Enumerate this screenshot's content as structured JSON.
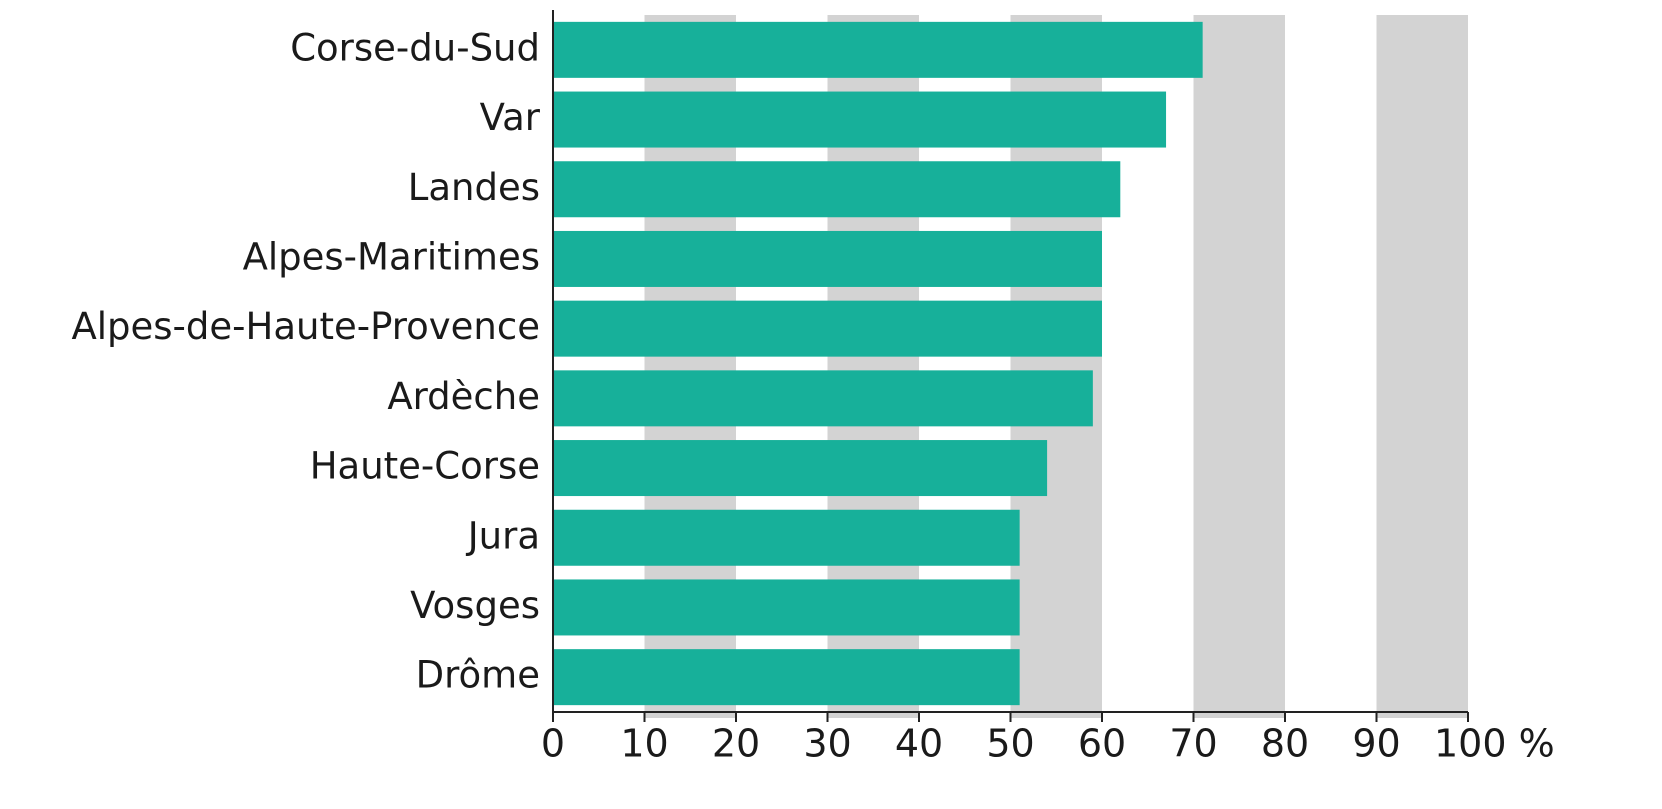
{
  "chart_data": {
    "type": "barh",
    "categories": [
      "Corse-du-Sud",
      "Var",
      "Landes",
      "Alpes-Maritimes",
      "Alpes-de-Haute-Provence",
      "Ardèche",
      "Haute-Corse",
      "Jura",
      "Vosges",
      "Drôme"
    ],
    "values": [
      71,
      67,
      62,
      60,
      60,
      59,
      54,
      51,
      51,
      51
    ],
    "color": "#17b09a",
    "band_color": "#d3d3d3",
    "xlim": [
      0,
      100
    ],
    "xticks": [
      0,
      10,
      20,
      30,
      40,
      50,
      60,
      70,
      80,
      90,
      {
        "value": 100,
        "label": "100 %"
      }
    ]
  }
}
